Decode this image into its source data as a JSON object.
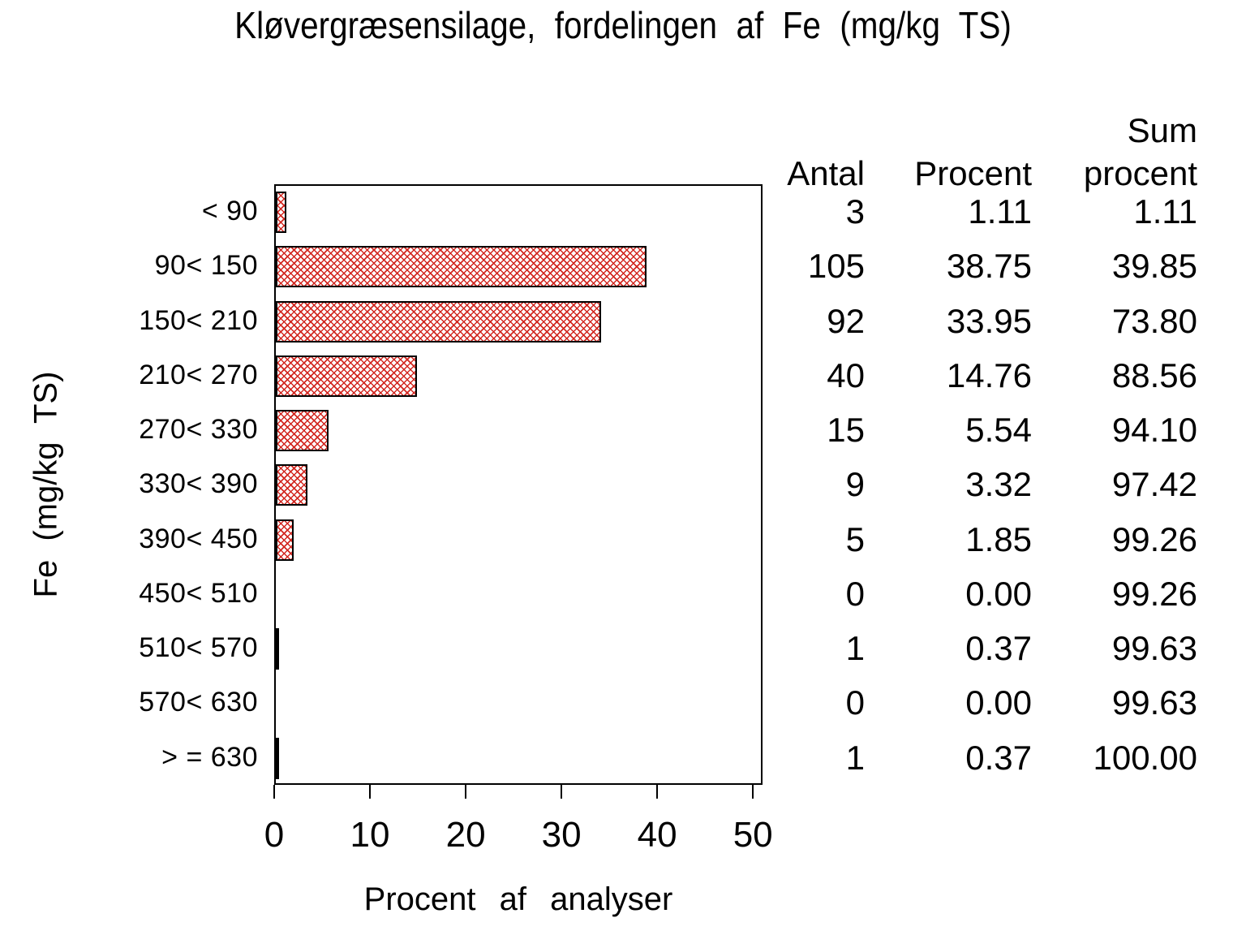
{
  "chart_data": {
    "type": "bar",
    "orientation": "horizontal",
    "title": "Kløvergræsensilage, fordelingen af Fe (mg/kg TS)",
    "xlabel": "Procent af analyser",
    "ylabel": "Fe (mg/kg TS)",
    "xlim": [
      0,
      51
    ],
    "xticks": [
      0,
      10,
      20,
      30,
      40,
      50
    ],
    "grid": false,
    "bar_style": "red diagonal crosshatch, black outline",
    "bar_color": "#d22720",
    "categories": [
      "< 90",
      "90< 150",
      "150< 210",
      "210< 270",
      "270< 330",
      "330< 390",
      "390< 450",
      "450< 510",
      "510< 570",
      "570< 630",
      "> = 630"
    ],
    "values": [
      1.11,
      38.75,
      33.95,
      14.76,
      5.54,
      3.32,
      1.85,
      0.0,
      0.37,
      0.0,
      0.37
    ],
    "table": {
      "headers": {
        "antal": "Antal",
        "procent": "Procent",
        "sum_line1": "Sum",
        "sum_line2": "procent"
      },
      "rows": [
        {
          "antal": "3",
          "procent": "1.11",
          "sum": "1.11"
        },
        {
          "antal": "105",
          "procent": "38.75",
          "sum": "39.85"
        },
        {
          "antal": "92",
          "procent": "33.95",
          "sum": "73.80"
        },
        {
          "antal": "40",
          "procent": "14.76",
          "sum": "88.56"
        },
        {
          "antal": "15",
          "procent": "5.54",
          "sum": "94.10"
        },
        {
          "antal": "9",
          "procent": "3.32",
          "sum": "97.42"
        },
        {
          "antal": "5",
          "procent": "1.85",
          "sum": "99.26"
        },
        {
          "antal": "0",
          "procent": "0.00",
          "sum": "99.26"
        },
        {
          "antal": "1",
          "procent": "0.37",
          "sum": "99.63"
        },
        {
          "antal": "0",
          "procent": "0.00",
          "sum": "99.63"
        },
        {
          "antal": "1",
          "procent": "0.37",
          "sum": "100.00"
        }
      ]
    }
  }
}
